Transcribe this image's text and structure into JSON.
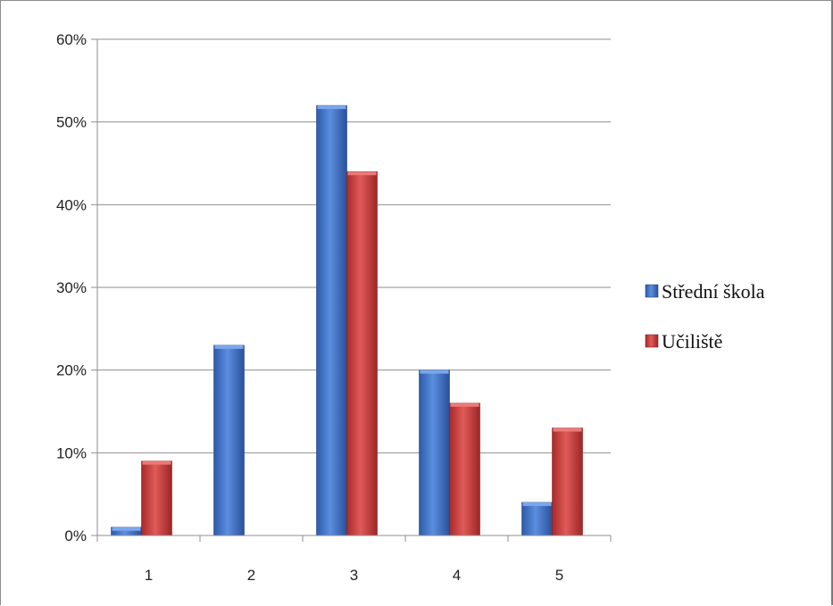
{
  "chart_data": {
    "type": "bar",
    "categories": [
      "1",
      "2",
      "3",
      "4",
      "5"
    ],
    "series": [
      {
        "name": "Střední škola",
        "values": [
          1,
          23,
          52,
          20,
          4
        ],
        "color": "#3a6fc4"
      },
      {
        "name": "Učiliště",
        "values": [
          9,
          0,
          44,
          16,
          13
        ],
        "color": "#c63a38"
      }
    ],
    "ylim": [
      0,
      60
    ],
    "yticks": [
      0,
      10,
      20,
      30,
      40,
      50,
      60
    ],
    "ytick_format": "%",
    "grid": true,
    "legend_position": "right"
  }
}
